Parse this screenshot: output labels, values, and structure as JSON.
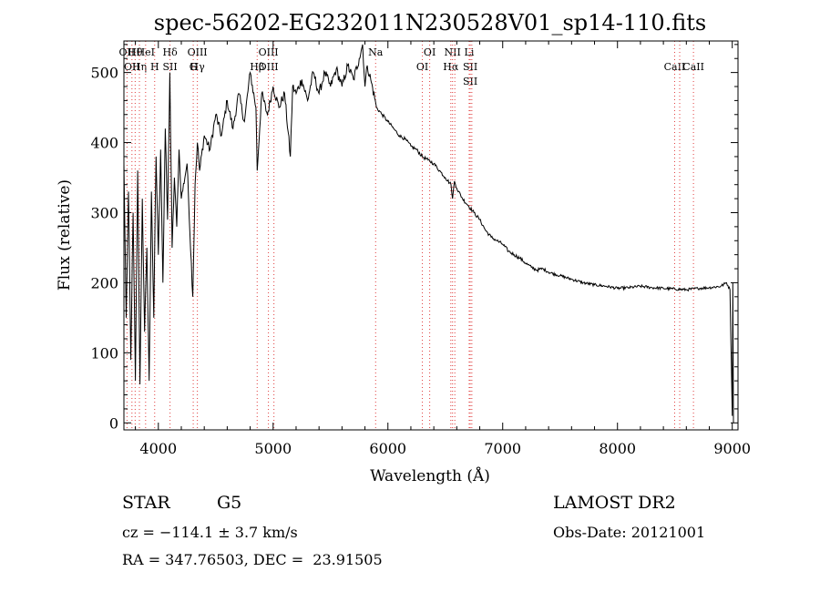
{
  "chart_data": {
    "type": "line",
    "title": "spec-56202-EG232011N230528V01_sp14-110.fits",
    "xlabel": "Wavelength (Å)",
    "ylabel": "Flux (relative)",
    "xlim": [
      3700,
      9050
    ],
    "ylim": [
      -10,
      545
    ],
    "xticks": [
      4000,
      5000,
      6000,
      7000,
      8000,
      9000
    ],
    "yticks": [
      0,
      100,
      200,
      300,
      400,
      500
    ],
    "grid": false,
    "series": [
      {
        "x": [
          3700,
          3720,
          3740,
          3760,
          3780,
          3800,
          3820,
          3840,
          3860,
          3880,
          3900,
          3920,
          3940,
          3960,
          3980,
          4000,
          4020,
          4040,
          4060,
          4080,
          4100,
          4120,
          4140,
          4160,
          4180,
          4200,
          4250,
          4300,
          4320,
          4340,
          4360,
          4400,
          4450,
          4500,
          4550,
          4600,
          4650,
          4700,
          4750,
          4800,
          4850,
          4861,
          4900,
          4950,
          5000,
          5050,
          5100,
          5150,
          5170,
          5200,
          5250,
          5300,
          5350,
          5400,
          5450,
          5500,
          5550,
          5600,
          5650,
          5700,
          5750,
          5780,
          5800,
          5820,
          5850,
          5890,
          5900,
          5950,
          6000,
          6050,
          6100,
          6150,
          6200,
          6250,
          6300,
          6350,
          6400,
          6450,
          6500,
          6550,
          6563,
          6580,
          6600,
          6650,
          6700,
          6750,
          6800,
          6850,
          6900,
          6950,
          7000,
          7050,
          7100,
          7150,
          7200,
          7250,
          7300,
          7350,
          7400,
          7500,
          7600,
          7700,
          7800,
          7900,
          8000,
          8100,
          8200,
          8300,
          8400,
          8500,
          8600,
          8700,
          8800,
          8900,
          8950,
          8980,
          9000,
          9005,
          9010
        ],
        "y": [
          370,
          150,
          330,
          90,
          300,
          60,
          360,
          55,
          320,
          130,
          250,
          60,
          330,
          150,
          380,
          240,
          390,
          200,
          420,
          290,
          500,
          250,
          350,
          280,
          390,
          320,
          370,
          180,
          340,
          400,
          360,
          410,
          390,
          440,
          410,
          460,
          420,
          470,
          430,
          500,
          450,
          360,
          470,
          440,
          480,
          450,
          470,
          380,
          480,
          470,
          490,
          460,
          500,
          470,
          500,
          480,
          505,
          480,
          510,
          490,
          520,
          540,
          480,
          510,
          490,
          460,
          450,
          440,
          430,
          420,
          410,
          405,
          395,
          390,
          380,
          375,
          370,
          360,
          350,
          340,
          320,
          345,
          335,
          320,
          310,
          300,
          290,
          275,
          265,
          260,
          255,
          245,
          240,
          235,
          228,
          222,
          218,
          220,
          215,
          210,
          205,
          200,
          197,
          195,
          192,
          193,
          195,
          193,
          192,
          191,
          190,
          192,
          193,
          195,
          200,
          190,
          10,
          200,
          0
        ]
      }
    ],
    "lines": [
      {
        "wave": 3727,
        "labels": [
          "OII"
        ]
      },
      {
        "wave": 3770,
        "labels": [
          "OII"
        ]
      },
      {
        "wave": 3798,
        "labels": [
          "Hθ"
        ]
      },
      {
        "wave": 3835,
        "labels": [
          "Hη"
        ]
      },
      {
        "wave": 3889,
        "labels": [
          "HeI"
        ]
      },
      {
        "wave": 3968,
        "labels": [
          "H"
        ]
      },
      {
        "wave": 4102,
        "labels": [
          "Hδ",
          "SII"
        ]
      },
      {
        "wave": 4304,
        "labels": [
          "G"
        ]
      },
      {
        "wave": 4340,
        "labels": [
          "OIII",
          "Hγ"
        ]
      },
      {
        "wave": 4861,
        "labels": [
          "Hβ"
        ]
      },
      {
        "wave": 4959,
        "labels": [
          "OIII",
          "OIII"
        ]
      },
      {
        "wave": 5007,
        "labels": []
      },
      {
        "wave": 5893,
        "labels": [
          "Na"
        ]
      },
      {
        "wave": 6300,
        "labels": [
          "OI"
        ]
      },
      {
        "wave": 6364,
        "labels": [
          "OI"
        ]
      },
      {
        "wave": 6548,
        "labels": [
          "Hα"
        ]
      },
      {
        "wave": 6563,
        "labels": [
          "NII"
        ]
      },
      {
        "wave": 6583,
        "labels": []
      },
      {
        "wave": 6708,
        "labels": [
          "Li"
        ]
      },
      {
        "wave": 6717,
        "labels": [
          "SII",
          "SII"
        ]
      },
      {
        "wave": 6731,
        "labels": []
      },
      {
        "wave": 8498,
        "labels": [
          "CaII"
        ]
      },
      {
        "wave": 8542,
        "labels": []
      },
      {
        "wave": 8662,
        "labels": [
          "CaII"
        ]
      }
    ],
    "line_color": "#e03c3c"
  },
  "info": {
    "object_class": "STAR",
    "subclass": "G5",
    "survey": "LAMOST DR2",
    "redshift": "cz = −114.1 ± 3.7 km/s",
    "obs_date": "Obs-Date: 20121001",
    "coords": "RA = 347.76503, DEC =  23.91505"
  }
}
